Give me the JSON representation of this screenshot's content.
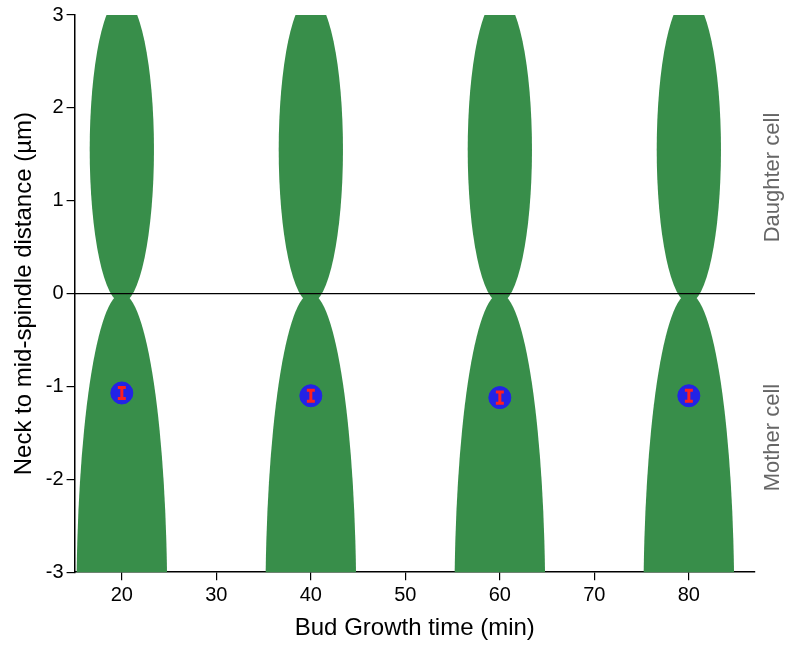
{
  "chart_data": {
    "type": "scatter",
    "x_label": "Bud Growth time (min)",
    "y_label": "Neck to mid-spindle distance (µm)",
    "x": [
      20,
      40,
      60,
      80
    ],
    "values": [
      -1.07,
      -1.1,
      -1.12,
      -1.1
    ],
    "errors": [
      0.06,
      0.06,
      0.06,
      0.06
    ],
    "color": "#2323e6",
    "error_color": "#ff1f1f",
    "marker": "circle",
    "xlim": [
      15,
      87
    ],
    "xticks": [
      20,
      30,
      40,
      50,
      60,
      70,
      80
    ],
    "ylim": [
      -3,
      3
    ],
    "yticks": [
      -3,
      -2,
      -1,
      0,
      1,
      2,
      3
    ],
    "grid": false,
    "cells": {
      "color": "#388e4a",
      "daughter": {
        "center": 1.55,
        "half_length": 1.65,
        "half_width": 3.4
      },
      "mother": {
        "center": -3.3,
        "half_length": 3.3,
        "half_width": 4.8
      }
    },
    "neck_line": 0,
    "annotations": [
      {
        "text": "Daughter cell",
        "y": 1.25
      },
      {
        "text": "Mother cell",
        "y": -1.55
      }
    ]
  }
}
